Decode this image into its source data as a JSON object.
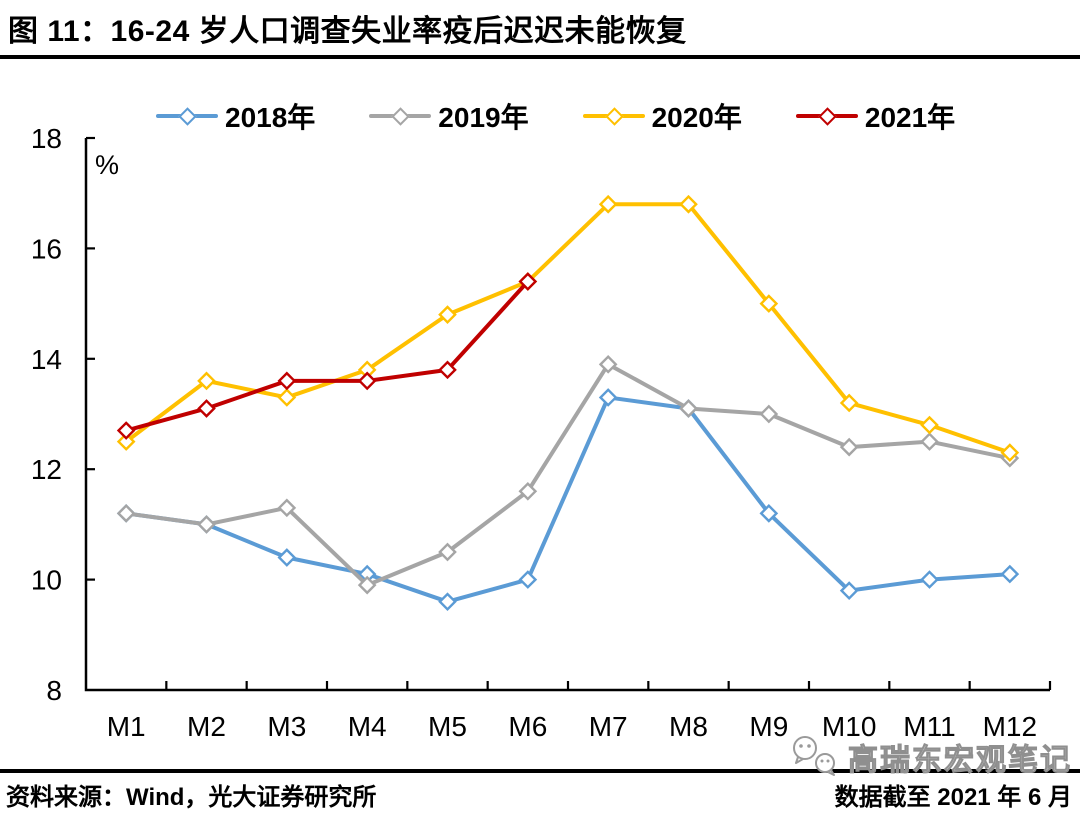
{
  "header": {
    "title": "图 11：16-24 岁人口调查失业率疫后迟迟未能恢复"
  },
  "chart_data": {
    "type": "line",
    "title": "图 11：16-24 岁人口调查失业率疫后迟迟未能恢复",
    "unit_label": "%",
    "categories": [
      "M1",
      "M2",
      "M3",
      "M4",
      "M5",
      "M6",
      "M7",
      "M8",
      "M9",
      "M10",
      "M11",
      "M12"
    ],
    "series": [
      {
        "name": "2018年",
        "color": "#5B9BD5",
        "values": [
          11.2,
          11.0,
          10.4,
          10.1,
          9.6,
          10.0,
          13.3,
          13.1,
          11.2,
          9.8,
          10.0,
          10.1
        ]
      },
      {
        "name": "2019年",
        "color": "#A5A5A5",
        "values": [
          11.2,
          11.0,
          11.3,
          9.9,
          10.5,
          11.6,
          13.9,
          13.1,
          13.0,
          12.4,
          12.5,
          12.2
        ]
      },
      {
        "name": "2020年",
        "color": "#FFC000",
        "values": [
          12.5,
          13.6,
          13.3,
          13.8,
          14.8,
          15.4,
          16.8,
          16.8,
          15.0,
          13.2,
          12.8,
          12.3
        ]
      },
      {
        "name": "2021年",
        "color": "#C00000",
        "values": [
          12.7,
          13.1,
          13.6,
          13.6,
          13.8,
          15.4
        ]
      }
    ],
    "ylim": [
      8,
      18
    ],
    "yticks": [
      8,
      10,
      12,
      14,
      16,
      18
    ],
    "grid": false,
    "legend_position": "top",
    "marker": "open-diamond",
    "axis_color": "#000000"
  },
  "footer": {
    "source": "资料来源：Wind，光大证券研究所",
    "note": "数据截至 2021 年 6 月"
  },
  "watermark": {
    "icon": "wechat-icon",
    "text": "高瑞东宏观笔记"
  }
}
